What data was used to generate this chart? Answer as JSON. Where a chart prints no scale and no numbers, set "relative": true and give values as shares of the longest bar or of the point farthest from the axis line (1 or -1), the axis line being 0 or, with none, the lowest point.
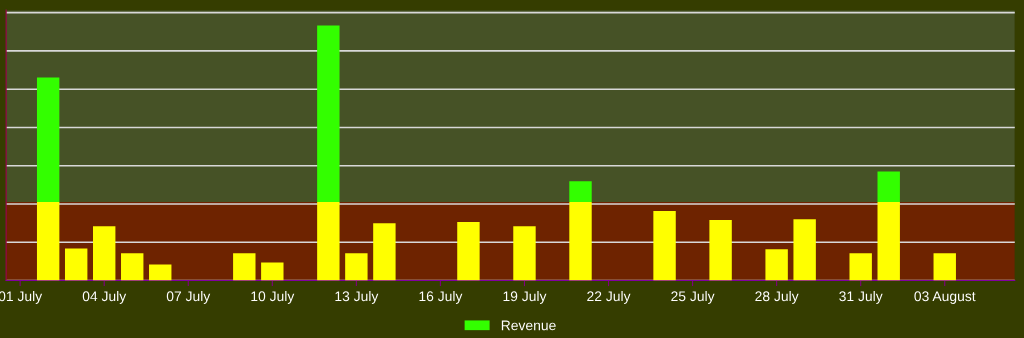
{
  "chart_data": {
    "type": "bar",
    "relative": true,
    "stacked": true,
    "grid": "y",
    "legend": "bottom",
    "categories": [
      "01 July",
      null,
      null,
      "04 July",
      null,
      null,
      "07 July",
      null,
      null,
      "10 July",
      null,
      null,
      "13 July",
      null,
      null,
      "16 July",
      null,
      null,
      "19 July",
      null,
      null,
      "22 July",
      null,
      null,
      "25 July",
      null,
      null,
      "28 July",
      null,
      null,
      "31 July",
      null,
      null,
      "03 August",
      null,
      null
    ],
    "series": [
      {
        "color": "#ffff00",
        "values": [
          null,
          0.308,
          0.126,
          0.213,
          0.107,
          0.063,
          null,
          null,
          0.107,
          0.071,
          null,
          0.308,
          0.107,
          0.225,
          null,
          null,
          0.229,
          null,
          0.213,
          null,
          0.308,
          null,
          null,
          0.273,
          null,
          0.237,
          null,
          0.123,
          0.24,
          null,
          0.107,
          0.308,
          null,
          0.107,
          null,
          null
        ]
      },
      {
        "name": "Revenue",
        "color": "#33ff00",
        "values": [
          null,
          0.488,
          null,
          null,
          null,
          null,
          null,
          null,
          null,
          null,
          null,
          0.692,
          null,
          null,
          null,
          null,
          null,
          null,
          null,
          null,
          0.081,
          null,
          null,
          null,
          null,
          null,
          null,
          null,
          null,
          null,
          null,
          0.119,
          null,
          null,
          null,
          null
        ]
      }
    ],
    "bands": [
      {
        "axis": "y",
        "from": 0,
        "to": 0.308,
        "color": "#6e2300"
      },
      {
        "axis": "y",
        "from": 0.308,
        "to": 1.06,
        "color": "#465226"
      }
    ]
  }
}
